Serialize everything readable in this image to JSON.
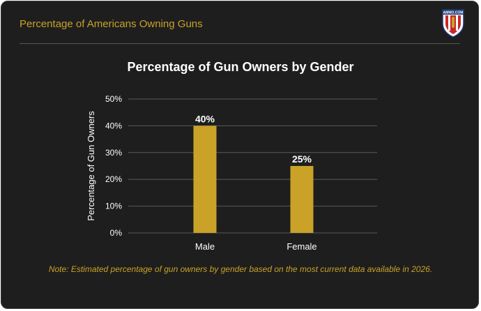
{
  "header": {
    "title": "Percentage of Americans Owning Guns",
    "logo_text": "AMMO.COM"
  },
  "colors": {
    "accent": "#c9a227",
    "background": "#1e1e1e",
    "bar": "#c9a227",
    "gridline": "#5a5a5a",
    "text": "#ffffff"
  },
  "note": "Note: Estimated percentage of gun owners by gender based on the most current data available in 2026.",
  "chart_data": {
    "type": "bar",
    "title": "Percentage of Gun Owners by Gender",
    "xlabel": "",
    "ylabel": "Percentage of Gun Owners",
    "categories": [
      "Male",
      "Female"
    ],
    "values": [
      40,
      25
    ],
    "value_labels": [
      "40%",
      "25%"
    ],
    "ylim": [
      0,
      50
    ],
    "yticks": [
      0,
      10,
      20,
      30,
      40,
      50
    ],
    "ytick_labels": [
      "0%",
      "10%",
      "20%",
      "30%",
      "40%",
      "50%"
    ],
    "grid": true,
    "legend": "none"
  }
}
